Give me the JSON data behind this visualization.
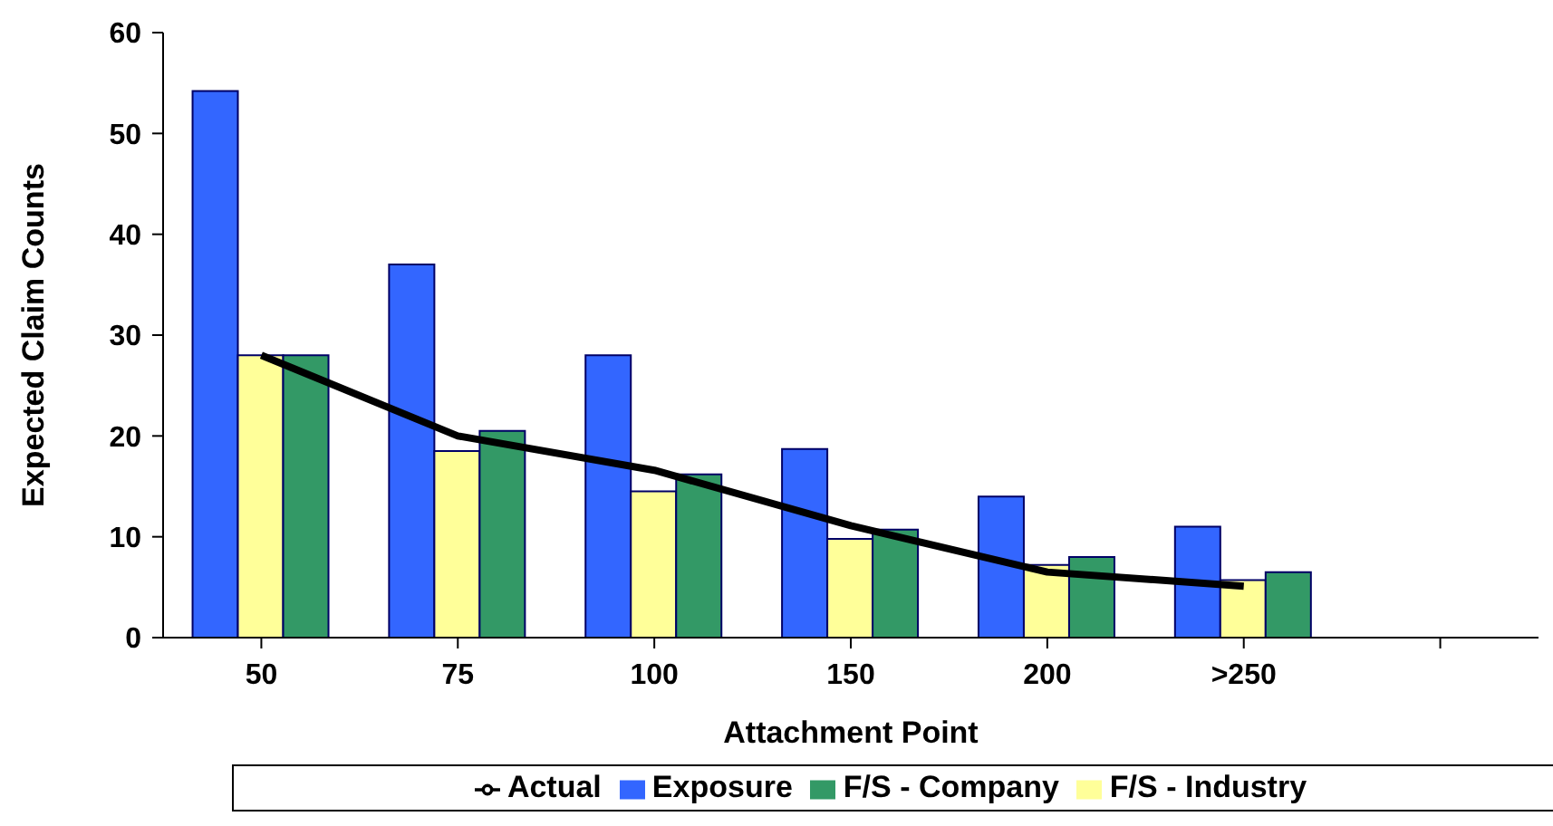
{
  "chart_data": {
    "type": "bar",
    "xlabel": "Attachment Point",
    "ylabel": "Expected Claim Counts",
    "categories": [
      "50",
      "75",
      "100",
      "150",
      "200",
      ">250",
      null
    ],
    "ylim": [
      0,
      60
    ],
    "yticks": [
      0,
      10,
      20,
      30,
      40,
      50,
      60
    ],
    "grid": false,
    "legend": "bottom",
    "series": [
      {
        "name": "Exposure",
        "color": "#3366ff",
        "values": [
          54.2,
          37,
          28,
          18.7,
          14,
          11,
          null
        ]
      },
      {
        "name": "F/S - Industry",
        "color": "#ffff99",
        "values": [
          28,
          18.5,
          14.5,
          9.8,
          7.2,
          5.7,
          null
        ]
      },
      {
        "name": "F/S - Company",
        "color": "#339966",
        "values": [
          28,
          20.5,
          16.2,
          10.7,
          8,
          6.5,
          null
        ]
      },
      {
        "name": "Actual",
        "type": "line",
        "color": "#000000",
        "values": [
          28,
          20,
          16.6,
          11.1,
          6.5,
          5.1,
          null
        ]
      }
    ]
  }
}
